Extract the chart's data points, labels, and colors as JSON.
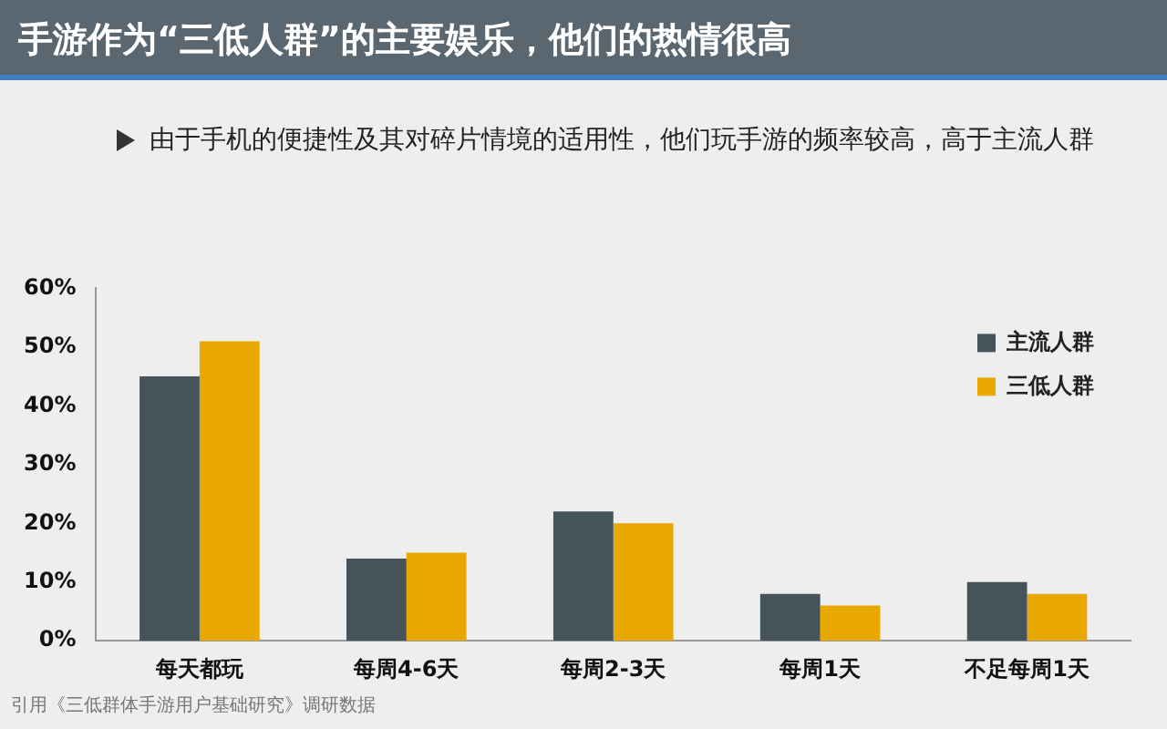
{
  "chart_data": {
    "type": "bar",
    "title": "手游作为“三低人群”的主要娱乐，他们的热情很高",
    "subtitle": "由于手机的便捷性及其对碎片情境的适用性，他们玩手游的频率较高，高于主流人群",
    "categories": [
      "每天都玩",
      "每周4-6天",
      "每周2-3天",
      "每周1天",
      "不足每周1天"
    ],
    "series": [
      {
        "name": "主流人群",
        "color": "#44545a",
        "values": [
          45,
          14,
          22,
          8,
          10
        ]
      },
      {
        "name": "三低人群",
        "color": "#e8a800",
        "values": [
          51,
          15,
          20,
          6,
          8
        ]
      }
    ],
    "ylim": [
      0,
      60
    ],
    "yticks": [
      {
        "value": 0,
        "label": "0%"
      },
      {
        "value": 10,
        "label": "10%"
      },
      {
        "value": 20,
        "label": "20%"
      },
      {
        "value": 30,
        "label": "30%"
      },
      {
        "value": 40,
        "label": "40%"
      },
      {
        "value": 50,
        "label": "50%"
      },
      {
        "value": 60,
        "label": "60%"
      }
    ],
    "grid": false,
    "legend": "top right",
    "annotations": [
      "引用《三低群体手游用户基础研究》调研数据"
    ]
  }
}
